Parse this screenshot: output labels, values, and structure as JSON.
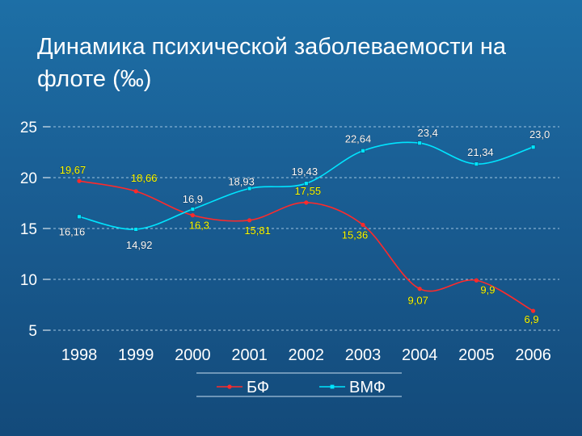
{
  "slide": {
    "title_line1": "Динамика психической заболеваемости на",
    "title_line2": "флоте (‰)"
  },
  "chart_data": {
    "type": "line",
    "categories": [
      "1998",
      "1999",
      "2000",
      "2001",
      "2002",
      "2003",
      "2004",
      "2005",
      "2006"
    ],
    "ylim": [
      5,
      25
    ],
    "yticks": [
      "5",
      "10",
      "15",
      "20",
      "25"
    ],
    "grid": "horizontal dashed",
    "legend_position": "bottom",
    "series": [
      {
        "name": "БФ",
        "color": "#ff2a2a",
        "label_color": "#ffff00",
        "values": [
          19.67,
          18.66,
          16.3,
          15.81,
          17.55,
          15.36,
          9.07,
          9.9,
          6.9
        ],
        "labels": [
          "19,67",
          "18,66",
          "16,3",
          "15,81",
          "17,55",
          "15,36",
          "9,07",
          "9,9",
          "6,9"
        ]
      },
      {
        "name": "ВМФ",
        "color": "#00e5ff",
        "label_color": "#ffffff",
        "values": [
          16.16,
          14.92,
          16.9,
          18.93,
          19.43,
          22.64,
          23.4,
          21.34,
          23.0
        ],
        "labels": [
          "16,16",
          "14,92",
          "16,9",
          "18,93",
          "19,43",
          "22,64",
          "23,4",
          "21,34",
          "23,0"
        ]
      }
    ]
  }
}
